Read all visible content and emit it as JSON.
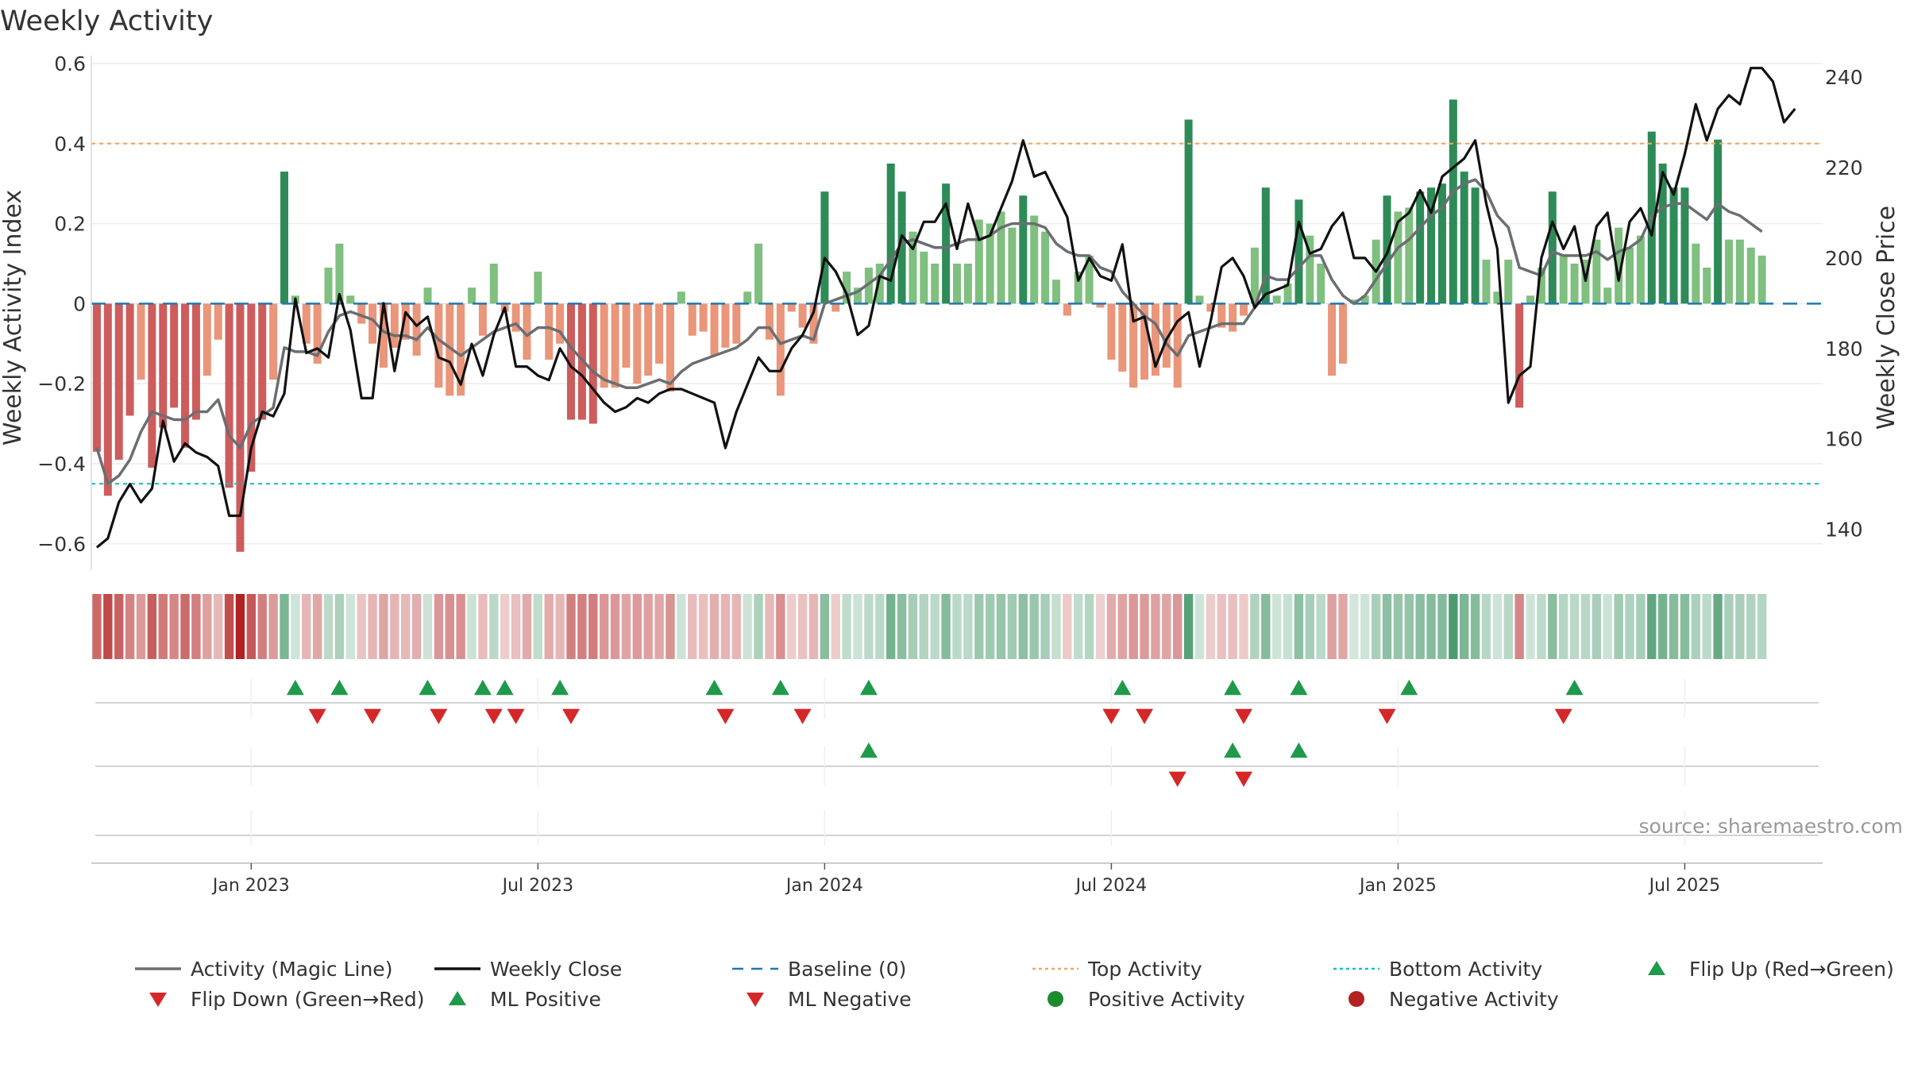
{
  "chart_data": {
    "type": "bar+line",
    "title": "Weekly Activity",
    "ylabel_left": "Weekly Activity Index",
    "ylabel_right": "Weekly Close Price",
    "source": "source: sharemaestro.com",
    "ylim_left": [
      -0.66,
      0.6
    ],
    "ylim_right": [
      131.5,
      243
    ],
    "yticks_left": [
      0.6,
      0.4,
      0.2,
      0,
      -0.2,
      -0.4,
      -0.6
    ],
    "yticks_left_labels": [
      "0.6",
      "0.4",
      "0.2",
      "0",
      "−0.2",
      "−0.4",
      "−0.6"
    ],
    "yticks_right": [
      240,
      220,
      200,
      180,
      160,
      140
    ],
    "x_tick_labels": [
      "Jan 2023",
      "Jul 2023",
      "Jan 2024",
      "Jul 2024",
      "Jan 2025",
      "Jul 2025"
    ],
    "x_tick_weeks": [
      14,
      40,
      66,
      92,
      118,
      144
    ],
    "week_count": 157,
    "top_activity": 0.4,
    "bottom_activity": -0.45,
    "activity": [
      -0.37,
      -0.48,
      -0.39,
      -0.28,
      -0.19,
      -0.41,
      -0.31,
      -0.26,
      -0.36,
      -0.29,
      -0.18,
      -0.09,
      -0.46,
      -0.62,
      -0.42,
      -0.29,
      -0.19,
      0.33,
      0.02,
      -0.1,
      -0.15,
      0.09,
      0.15,
      0.02,
      -0.05,
      -0.1,
      -0.16,
      -0.11,
      -0.09,
      -0.13,
      0.04,
      -0.21,
      -0.23,
      -0.23,
      0.04,
      -0.08,
      0.1,
      -0.02,
      -0.07,
      -0.14,
      0.08,
      -0.14,
      -0.1,
      -0.29,
      -0.29,
      -0.3,
      -0.21,
      -0.21,
      -0.16,
      -0.2,
      -0.18,
      -0.15,
      -0.22,
      0.03,
      -0.08,
      -0.07,
      -0.13,
      -0.11,
      -0.1,
      0.03,
      0.15,
      -0.09,
      -0.23,
      -0.02,
      -0.06,
      -0.1,
      0.28,
      -0.02,
      0.08,
      0.04,
      0.09,
      0.1,
      0.35,
      0.28,
      0.18,
      0.13,
      0.1,
      0.3,
      0.1,
      0.1,
      0.21,
      0.2,
      0.23,
      0.19,
      0.27,
      0.22,
      0.18,
      0.06,
      -0.03,
      0.08,
      0.12,
      -0.01,
      -0.14,
      -0.17,
      -0.21,
      -0.19,
      -0.18,
      -0.16,
      -0.21,
      0.46,
      0.02,
      -0.02,
      -0.06,
      -0.07,
      -0.03,
      0.14,
      0.29,
      0.02,
      0.05,
      0.26,
      0.17,
      0.1,
      -0.18,
      -0.15,
      0.01,
      0.02,
      0.16,
      0.27,
      0.23,
      0.24,
      0.28,
      0.29,
      0.3,
      0.51,
      0.33,
      0.29,
      0.11,
      0.03,
      0.11,
      -0.26,
      0.02,
      0.09,
      0.28,
      0.12,
      0.1,
      0.11,
      0.16,
      0.04,
      0.19,
      0.14,
      0.17,
      0.43,
      0.35,
      0.29,
      0.29,
      0.15,
      0.09,
      0.41,
      0.16,
      0.16,
      0.14,
      0.12
    ],
    "magic_line": [
      -0.36,
      -0.45,
      -0.43,
      -0.39,
      -0.32,
      -0.27,
      -0.28,
      -0.29,
      -0.29,
      -0.27,
      -0.27,
      -0.24,
      -0.33,
      -0.36,
      -0.3,
      -0.28,
      -0.26,
      -0.11,
      -0.12,
      -0.12,
      -0.13,
      -0.07,
      -0.03,
      -0.02,
      -0.03,
      -0.04,
      -0.07,
      -0.08,
      -0.08,
      -0.09,
      -0.06,
      -0.09,
      -0.11,
      -0.13,
      -0.11,
      -0.09,
      -0.07,
      -0.06,
      -0.05,
      -0.08,
      -0.06,
      -0.06,
      -0.07,
      -0.11,
      -0.14,
      -0.17,
      -0.19,
      -0.2,
      -0.21,
      -0.21,
      -0.2,
      -0.19,
      -0.2,
      -0.17,
      -0.15,
      -0.14,
      -0.13,
      -0.12,
      -0.11,
      -0.09,
      -0.06,
      -0.06,
      -0.1,
      -0.09,
      -0.08,
      -0.09,
      0.0,
      0.01,
      0.02,
      0.03,
      0.05,
      0.07,
      0.11,
      0.15,
      0.16,
      0.15,
      0.14,
      0.14,
      0.15,
      0.16,
      0.16,
      0.17,
      0.19,
      0.2,
      0.2,
      0.2,
      0.19,
      0.15,
      0.13,
      0.12,
      0.12,
      0.09,
      0.08,
      0.03,
      0.0,
      -0.03,
      -0.05,
      -0.1,
      -0.13,
      -0.08,
      -0.07,
      -0.06,
      -0.05,
      -0.05,
      -0.05,
      -0.01,
      0.07,
      0.06,
      0.06,
      0.09,
      0.12,
      0.12,
      0.06,
      0.02,
      0.0,
      0.02,
      0.06,
      0.1,
      0.14,
      0.16,
      0.19,
      0.22,
      0.24,
      0.28,
      0.3,
      0.31,
      0.28,
      0.22,
      0.19,
      0.09,
      0.08,
      0.07,
      0.13,
      0.12,
      0.12,
      0.12,
      0.13,
      0.11,
      0.13,
      0.14,
      0.16,
      0.22,
      0.24,
      0.25,
      0.25,
      0.23,
      0.21,
      0.25,
      0.23,
      0.22,
      0.2,
      0.18
    ],
    "weekly_close": [
      136,
      138,
      146,
      150,
      146,
      149,
      164,
      155,
      159,
      157,
      156,
      154,
      143,
      143,
      158,
      166,
      165,
      170,
      191,
      179,
      180,
      178,
      192,
      184,
      169,
      169,
      190,
      175,
      188,
      185,
      187,
      178,
      177,
      172,
      181,
      174,
      183,
      189,
      176,
      176,
      174,
      173,
      180,
      176,
      174,
      171,
      168,
      166,
      167,
      169,
      168,
      170,
      171,
      171,
      170,
      169,
      168,
      158,
      166,
      172,
      178,
      175,
      175,
      180,
      183,
      188,
      200,
      197,
      192,
      183,
      185,
      196,
      195,
      205,
      202,
      208,
      208,
      212,
      202,
      212,
      204,
      205,
      211,
      217,
      226,
      218,
      219,
      214,
      209,
      195,
      200,
      196,
      195,
      203,
      186,
      187,
      176,
      182,
      186,
      188,
      176,
      186,
      198,
      200,
      196,
      189,
      192,
      193,
      194,
      208,
      201,
      202,
      207,
      210,
      200,
      200,
      197,
      201,
      208,
      210,
      215,
      210,
      218,
      220,
      222,
      226,
      212,
      202,
      168,
      174,
      176,
      200,
      208,
      202,
      207,
      195,
      207,
      210,
      195,
      208,
      211,
      205,
      219,
      214,
      223,
      234,
      226,
      233,
      236,
      234,
      242,
      242,
      239,
      230,
      233
    ],
    "flip_up_weeks": [
      18,
      22,
      30,
      35,
      37,
      42,
      56,
      62,
      70,
      93,
      103,
      109,
      119,
      134
    ],
    "flip_down_weeks": [
      20,
      25,
      31,
      36,
      38,
      43,
      57,
      64,
      92,
      95,
      104,
      117,
      133
    ],
    "ml_positive_weeks": [
      70,
      103,
      109
    ],
    "ml_negative_weeks": [
      98,
      104
    ],
    "legend": [
      {
        "label": "Activity (Magic Line)",
        "type": "line",
        "color": "#6b6e72"
      },
      {
        "label": "Weekly Close",
        "type": "line",
        "color": "#111111"
      },
      {
        "label": "Baseline (0)",
        "type": "dashed",
        "color": "#1f77b4"
      },
      {
        "label": "Top Activity",
        "type": "dotted",
        "color": "#f4a460"
      },
      {
        "label": "Bottom Activity",
        "type": "dotted",
        "color": "#17becf"
      },
      {
        "label": "Flip Up (Red→Green)",
        "type": "triangle-up",
        "color": "#1f9a4a"
      },
      {
        "label": "Flip Down (Green→Red)",
        "type": "triangle-down",
        "color": "#d62728"
      },
      {
        "label": "ML Positive",
        "type": "triangle-up",
        "color": "#1f9a4a"
      },
      {
        "label": "ML Negative",
        "type": "triangle-down",
        "color": "#d62728"
      },
      {
        "label": "Positive Activity",
        "type": "circle",
        "color": "#1e8a2e"
      },
      {
        "label": "Negative Activity",
        "type": "circle",
        "color": "#b22222"
      }
    ]
  },
  "colors": {
    "pos_strong": "#2e8b57",
    "pos_light": "#7fbf7f",
    "neg_strong": "#cd5c5c",
    "neg_light": "#e9967a"
  }
}
